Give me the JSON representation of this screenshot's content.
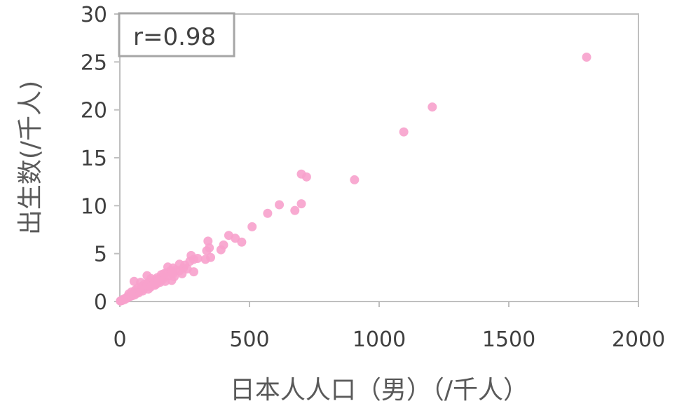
{
  "chart_data": {
    "type": "scatter",
    "title": "",
    "xlabel": "日本人人口（男）（/千人）",
    "ylabel": "出生数(/千人)",
    "xlim": [
      0,
      2000
    ],
    "ylim": [
      0,
      30
    ],
    "x_ticks": [
      "0",
      "500",
      "1000",
      "1500",
      "2000"
    ],
    "y_ticks": [
      "0",
      "5",
      "10",
      "15",
      "20",
      "25",
      "30"
    ],
    "annotation": "r=0.98",
    "grid": false,
    "marker_color": "#f7a1cc",
    "series": [
      {
        "points": [
          [
            1800,
            25.5
          ],
          [
            1205,
            20.3
          ],
          [
            1095,
            17.7
          ],
          [
            905,
            12.7
          ],
          [
            700,
            13.3
          ],
          [
            720,
            13.0
          ],
          [
            700,
            10.2
          ],
          [
            615,
            10.1
          ],
          [
            675,
            9.5
          ],
          [
            570,
            9.2
          ],
          [
            510,
            7.8
          ],
          [
            420,
            6.9
          ],
          [
            445,
            6.6
          ],
          [
            470,
            6.2
          ],
          [
            400,
            5.9
          ],
          [
            390,
            5.4
          ],
          [
            340,
            6.3
          ],
          [
            345,
            5.6
          ],
          [
            335,
            5.3
          ],
          [
            350,
            4.6
          ],
          [
            330,
            4.4
          ],
          [
            300,
            4.5
          ],
          [
            285,
            4.4
          ],
          [
            275,
            4.8
          ],
          [
            270,
            4.2
          ],
          [
            285,
            3.1
          ],
          [
            250,
            3.8
          ],
          [
            245,
            3.5
          ],
          [
            230,
            3.9
          ],
          [
            215,
            3.3
          ],
          [
            205,
            3.5
          ],
          [
            195,
            3.2
          ],
          [
            205,
            2.9
          ],
          [
            190,
            2.7
          ],
          [
            200,
            2.2
          ],
          [
            185,
            3.6
          ],
          [
            170,
            2.6
          ],
          [
            165,
            2.3
          ],
          [
            160,
            2.8
          ],
          [
            150,
            2.1
          ],
          [
            145,
            2.5
          ],
          [
            140,
            1.8
          ],
          [
            130,
            2.2
          ],
          [
            125,
            1.9
          ],
          [
            120,
            2.4
          ],
          [
            115,
            1.6
          ],
          [
            110,
            2.0
          ],
          [
            105,
            2.7
          ],
          [
            100,
            1.5
          ],
          [
            95,
            1.8
          ],
          [
            90,
            1.3
          ],
          [
            85,
            1.6
          ],
          [
            80,
            2.0
          ],
          [
            75,
            1.1
          ],
          [
            70,
            1.4
          ],
          [
            65,
            0.9
          ],
          [
            60,
            1.2
          ],
          [
            55,
            2.1
          ],
          [
            50,
            0.8
          ],
          [
            45,
            1.0
          ],
          [
            40,
            0.6
          ],
          [
            35,
            0.8
          ],
          [
            30,
            0.5
          ],
          [
            25,
            0.4
          ],
          [
            20,
            0.3
          ],
          [
            15,
            0.25
          ],
          [
            10,
            0.15
          ],
          [
            5,
            0.1
          ],
          [
            2,
            0.05
          ],
          [
            180,
            3.0
          ],
          [
            210,
            2.6
          ],
          [
            230,
            3.2
          ],
          [
            240,
            2.9
          ],
          [
            260,
            3.4
          ],
          [
            175,
            2.1
          ],
          [
            155,
            2.0
          ],
          [
            135,
            1.7
          ],
          [
            110,
            1.3
          ],
          [
            88,
            1.1
          ],
          [
            72,
            0.9
          ],
          [
            58,
            0.7
          ],
          [
            48,
            0.6
          ],
          [
            38,
            0.5
          ],
          [
            28,
            0.35
          ],
          [
            22,
            0.3
          ],
          [
            18,
            0.2
          ],
          [
            12,
            0.2
          ],
          [
            8,
            0.1
          ],
          [
            4,
            0.08
          ],
          [
            125,
            2.0
          ],
          [
            140,
            2.3
          ],
          [
            160,
            2.5
          ],
          [
            170,
            2.9
          ],
          [
            200,
            3.1
          ],
          [
            95,
            1.4
          ],
          [
            105,
            1.7
          ],
          [
            118,
            1.5
          ],
          [
            132,
            1.9
          ],
          [
            148,
            2.2
          ]
        ]
      }
    ]
  }
}
